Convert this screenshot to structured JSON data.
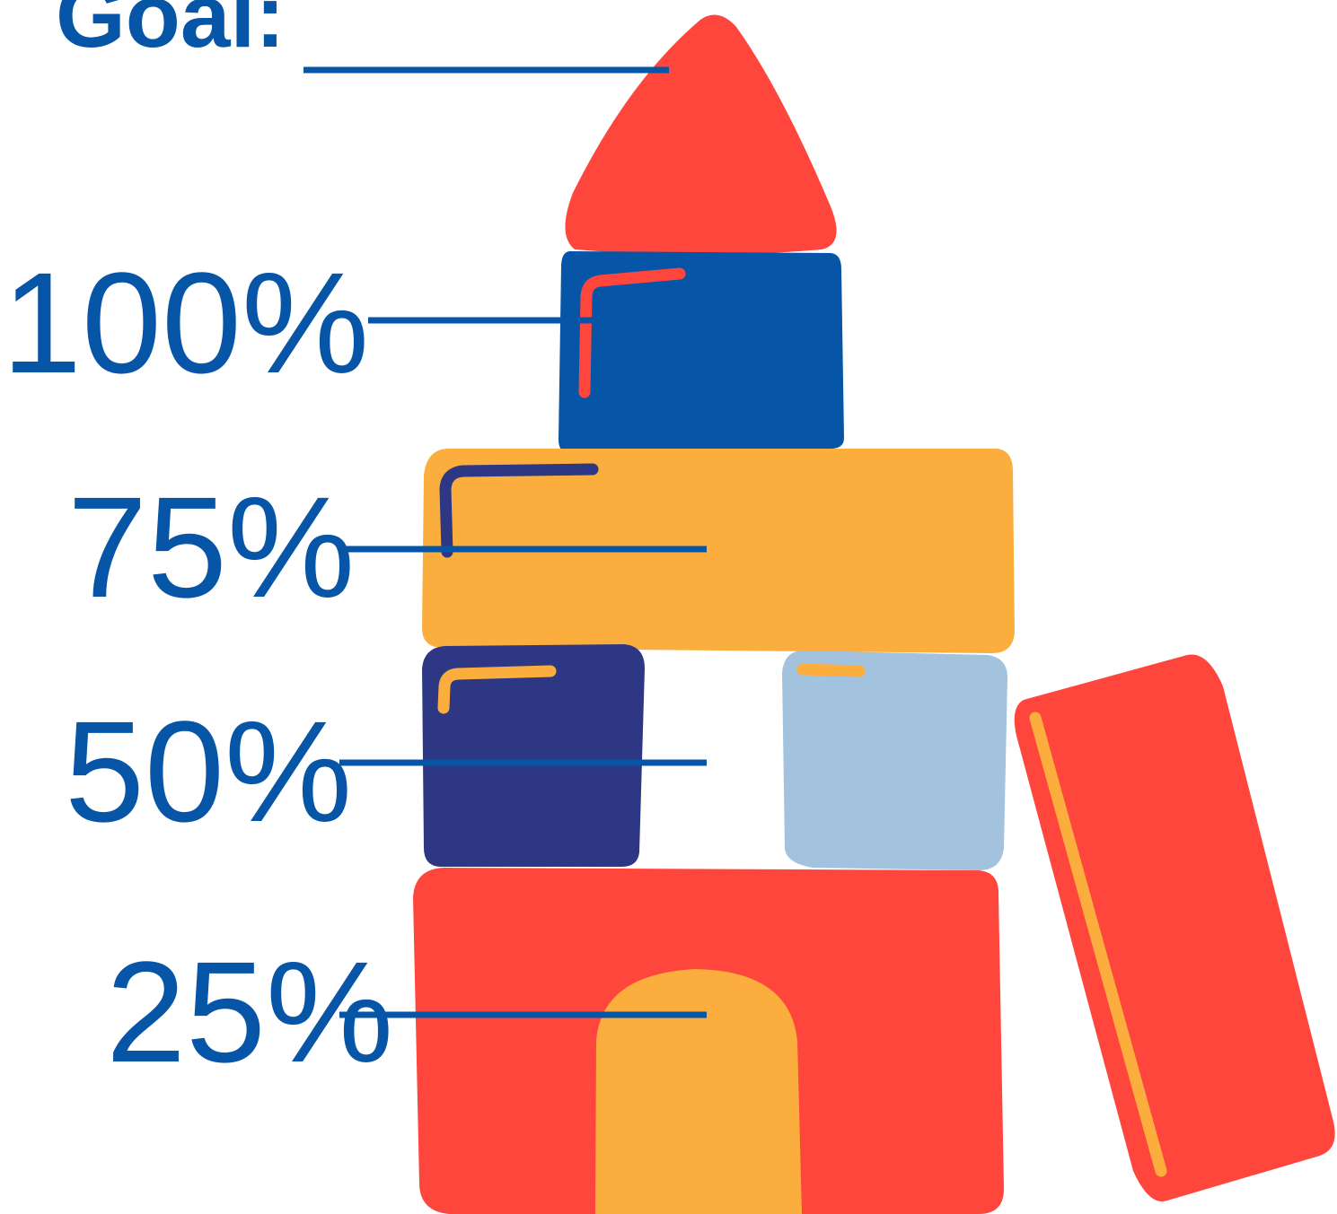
{
  "goal": "Goal:",
  "levels": [
    "100%",
    "75%",
    "50%",
    "25%"
  ]
}
